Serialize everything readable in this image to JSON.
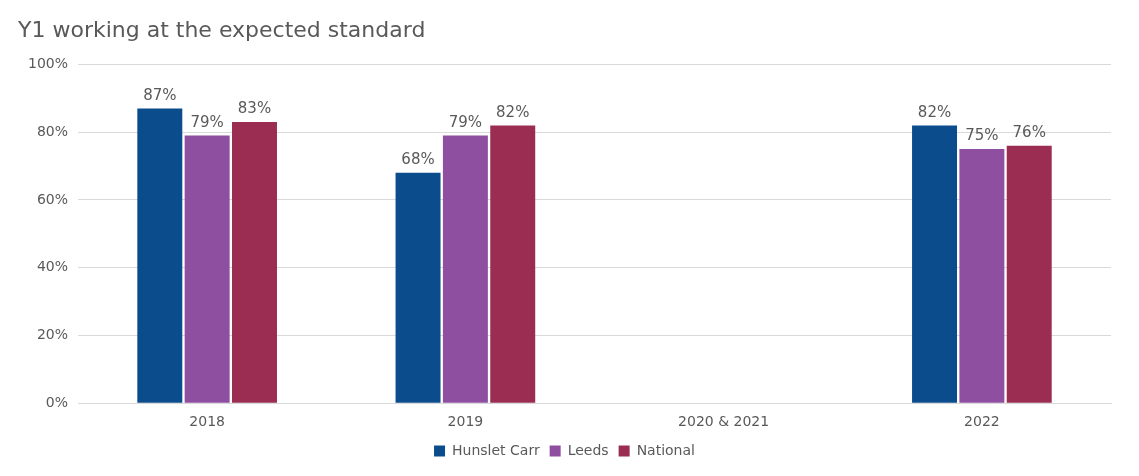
{
  "chart_data": {
    "type": "bar",
    "title": "Y1 working at the expected standard",
    "categories": [
      "2018",
      "2019",
      "2020 & 2021",
      "2022"
    ],
    "series": [
      {
        "name": "Hunslet Carr",
        "color": "#0b4d8c",
        "values": [
          87,
          68,
          null,
          82
        ],
        "value_labels": [
          "87%",
          "68%",
          null,
          "82%"
        ]
      },
      {
        "name": "Leeds",
        "color": "#8e4fa0",
        "values": [
          79,
          79,
          null,
          75
        ],
        "value_labels": [
          "79%",
          "79%",
          null,
          "75%"
        ]
      },
      {
        "name": "National",
        "color": "#9b2d52",
        "values": [
          83,
          82,
          null,
          76
        ],
        "value_labels": [
          "83%",
          "82%",
          null,
          "76%"
        ]
      }
    ],
    "ylim": [
      0,
      100
    ],
    "yticks": [
      {
        "value": 0,
        "label": "0%"
      },
      {
        "value": 20,
        "label": "20%"
      },
      {
        "value": 40,
        "label": "40%"
      },
      {
        "value": 60,
        "label": "60%"
      },
      {
        "value": 80,
        "label": "80%"
      },
      {
        "value": 100,
        "label": "100%"
      }
    ],
    "grid": "y",
    "legend": "bottom"
  }
}
